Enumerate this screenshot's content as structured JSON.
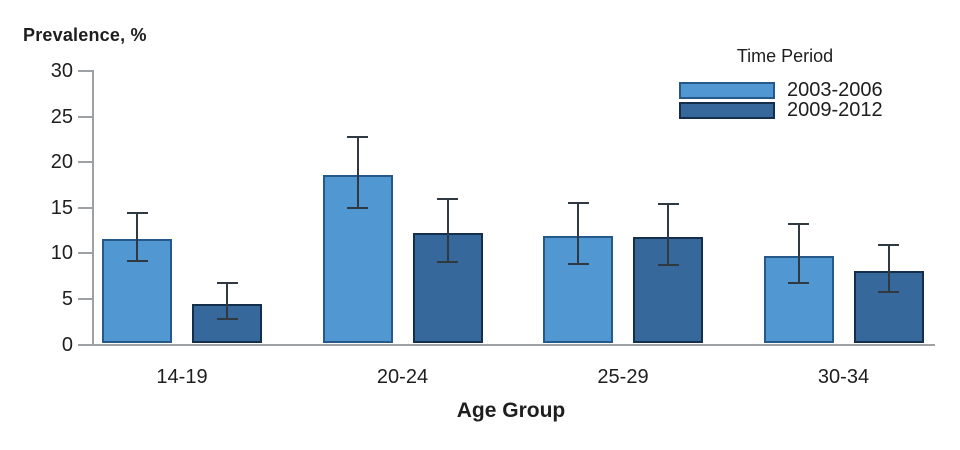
{
  "title": "Prevalence, %",
  "legend": {
    "title": "Time Period",
    "items": [
      {
        "label": "2003-2006",
        "color": "#5197D2",
        "border": "#24598A"
      },
      {
        "label": "2009-2012",
        "color": "#36689B",
        "border": "#132F4B"
      }
    ]
  },
  "chart_data": {
    "type": "bar",
    "title": "Prevalence, %",
    "xlabel": "Age Group",
    "ylabel": "Prevalence, %",
    "categories": [
      "14-19",
      "20-24",
      "25-29",
      "30-34"
    ],
    "series": [
      {
        "name": "2003-2006",
        "color": "#5197D2",
        "border": "#24598A",
        "values": [
          11.5,
          18.5,
          11.8,
          9.6
        ],
        "ci_low": [
          9.2,
          15.0,
          8.8,
          6.8
        ],
        "ci_high": [
          14.4,
          22.8,
          15.5,
          13.2
        ]
      },
      {
        "name": "2009-2012",
        "color": "#36689B",
        "border": "#132F4B",
        "values": [
          4.3,
          12.1,
          11.7,
          8.0
        ],
        "ci_low": [
          2.8,
          9.1,
          8.7,
          5.8
        ],
        "ci_high": [
          6.7,
          16.0,
          15.4,
          10.9
        ]
      }
    ],
    "ylim": [
      0,
      30
    ],
    "yticks": [
      0,
      5,
      10,
      15,
      20,
      25,
      30
    ],
    "grid": false,
    "error_bars": true,
    "error_color": "#303841",
    "axis_color": "#9da1a4",
    "legend_position": "top-right"
  }
}
